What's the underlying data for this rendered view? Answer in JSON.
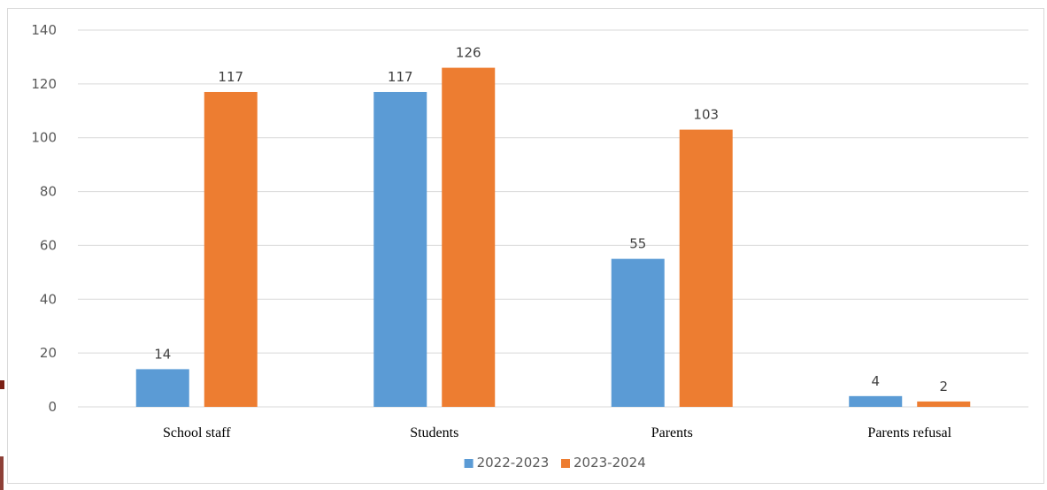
{
  "chart_data": {
    "type": "bar",
    "categories": [
      "School staff",
      "Students",
      "Parents",
      "Parents refusal"
    ],
    "series": [
      {
        "name": "2022-2023",
        "values": [
          14,
          117,
          55,
          4
        ],
        "color": "#5b9bd5"
      },
      {
        "name": "2023-2024",
        "values": [
          117,
          126,
          103,
          2
        ],
        "color": "#ed7d31"
      }
    ],
    "title": "",
    "xlabel": "",
    "ylabel": "",
    "ylim": [
      0,
      140
    ],
    "yticks": [
      0,
      20,
      40,
      60,
      80,
      100,
      120,
      140
    ],
    "grid": true,
    "legend": "bottom",
    "gridline_color": "#d9d9d9"
  }
}
